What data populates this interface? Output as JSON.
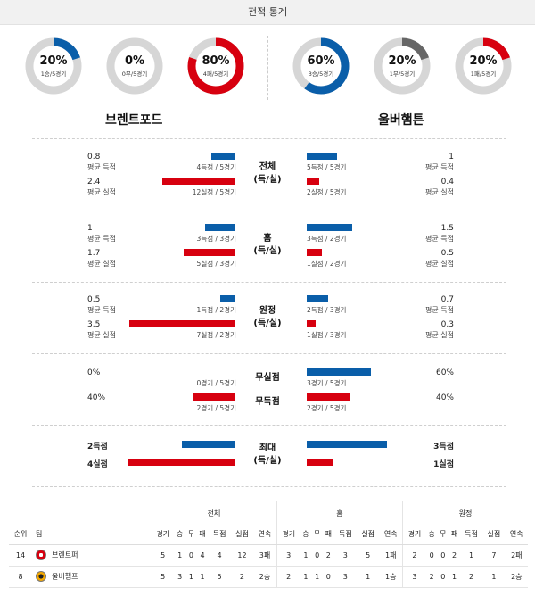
{
  "header": {
    "title": "전적 통계"
  },
  "colors": {
    "blue": "#0a5ea9",
    "red": "#d7000f",
    "grey": "#666666",
    "track": "#d6d6d6"
  },
  "donuts": [
    {
      "pct": "20%",
      "sub": "1승/5경기",
      "value": 0.2,
      "color": "#0a5ea9"
    },
    {
      "pct": "0%",
      "sub": "0무/5경기",
      "value": 0,
      "color": "#666666"
    },
    {
      "pct": "80%",
      "sub": "4패/5경기",
      "value": 0.8,
      "color": "#d7000f"
    },
    {
      "pct": "60%",
      "sub": "3승/5경기",
      "value": 0.6,
      "color": "#0a5ea9"
    },
    {
      "pct": "20%",
      "sub": "1무/5경기",
      "value": 0.2,
      "color": "#666666"
    },
    {
      "pct": "20%",
      "sub": "1패/5경기",
      "value": 0.2,
      "color": "#d7000f"
    }
  ],
  "teams": {
    "home": "브렌트포드",
    "away": "울버햄튼"
  },
  "chart_data": {
    "type": "bar",
    "sections": [
      {
        "title": "전체",
        "sub": "(득/실)",
        "home": {
          "avg_for": "0.8",
          "avg_for_label": "평균 득점",
          "for_count": "4득점 / 5경기",
          "for_value": 0.8,
          "avg_against": "2.4",
          "avg_against_label": "평균 실점",
          "against_count": "12실점 / 5경기",
          "against_value": 2.4
        },
        "away": {
          "avg_for": "1",
          "avg_for_label": "평균 득점",
          "for_count": "5득점 / 5경기",
          "for_value": 1,
          "avg_against": "0.4",
          "avg_against_label": "평균 실점",
          "against_count": "2실점 / 5경기",
          "against_value": 0.4
        }
      },
      {
        "title": "홈",
        "sub": "(득/실)",
        "home": {
          "avg_for": "1",
          "avg_for_label": "평균 득점",
          "for_count": "3득점 / 3경기",
          "for_value": 1,
          "avg_against": "1.7",
          "avg_against_label": "평균 실점",
          "against_count": "5실점 / 3경기",
          "against_value": 1.7
        },
        "away": {
          "avg_for": "1.5",
          "avg_for_label": "평균 득점",
          "for_count": "3득점 / 2경기",
          "for_value": 1.5,
          "avg_against": "0.5",
          "avg_against_label": "평균 실점",
          "against_count": "1실점 / 2경기",
          "against_value": 0.5
        }
      },
      {
        "title": "원정",
        "sub": "(득/실)",
        "home": {
          "avg_for": "0.5",
          "avg_for_label": "평균 득점",
          "for_count": "1득점 / 2경기",
          "for_value": 0.5,
          "avg_against": "3.5",
          "avg_against_label": "평균 실점",
          "against_count": "7실점 / 2경기",
          "against_value": 3.5
        },
        "away": {
          "avg_for": "0.7",
          "avg_for_label": "평균 득점",
          "for_count": "2득점 / 3경기",
          "for_value": 0.7,
          "avg_against": "0.3",
          "avg_against_label": "평균 실점",
          "against_count": "1실점 / 3경기",
          "against_value": 0.3
        }
      }
    ],
    "clean": {
      "label1": "무실점",
      "label2": "무득점",
      "home": {
        "clean_pct": "0%",
        "clean_count": "0경기 / 5경기",
        "clean_value": 0,
        "blank_pct": "40%",
        "blank_count": "2경기 / 5경기",
        "blank_value": 0.4
      },
      "away": {
        "clean_pct": "60%",
        "clean_count": "3경기 / 5경기",
        "clean_value": 0.6,
        "blank_pct": "40%",
        "blank_count": "2경기 / 5경기",
        "blank_value": 0.4
      }
    },
    "max": {
      "title": "최대",
      "sub": "(득/실)",
      "home": {
        "goals": "2득점",
        "goals_value": 2,
        "conceded": "4실점",
        "conceded_value": 4
      },
      "away": {
        "goals": "3득점",
        "goals_value": 3,
        "conceded": "1실점",
        "conceded_value": 1
      }
    }
  },
  "table": {
    "groups": [
      "전체",
      "홈",
      "원정"
    ],
    "col_rank": "순위",
    "col_team": "팀",
    "subheaders": [
      "경기",
      "승",
      "무",
      "패",
      "득점",
      "실점",
      "연속"
    ],
    "rows": [
      {
        "rank": "14",
        "team": "브렌트퍼",
        "logo": "brentford-logo",
        "all": [
          "5",
          "1",
          "0",
          "4",
          "4",
          "12",
          "3패"
        ],
        "home": [
          "3",
          "1",
          "0",
          "2",
          "3",
          "5",
          "1패"
        ],
        "away": [
          "2",
          "0",
          "0",
          "2",
          "1",
          "7",
          "2패"
        ]
      },
      {
        "rank": "8",
        "team": "울버햄프",
        "logo": "wolves-logo",
        "all": [
          "5",
          "3",
          "1",
          "1",
          "5",
          "2",
          "2승"
        ],
        "home": [
          "2",
          "1",
          "1",
          "0",
          "3",
          "1",
          "1승"
        ],
        "away": [
          "3",
          "2",
          "0",
          "1",
          "2",
          "1",
          "2승"
        ]
      }
    ]
  }
}
